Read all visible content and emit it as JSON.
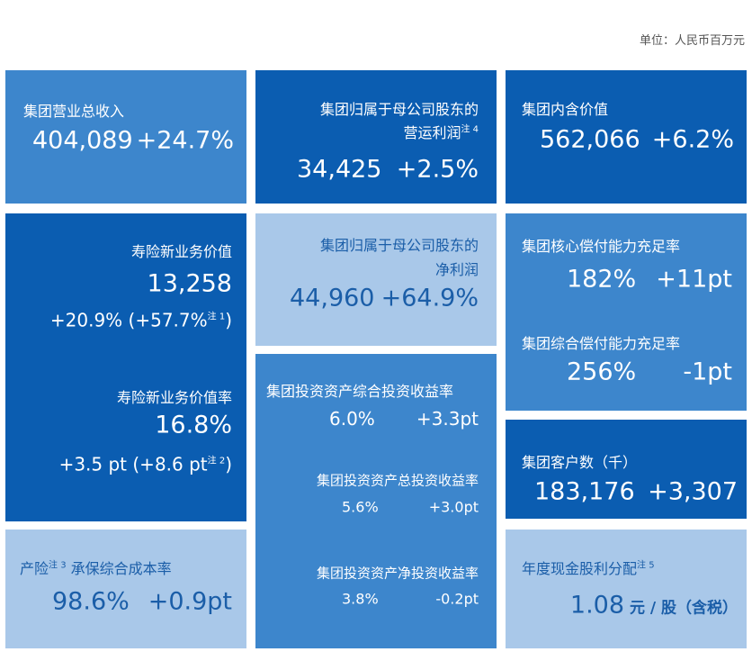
{
  "unit": "单位：人民币百万元",
  "revenue": {
    "label": "集团营业总收入",
    "value": "404,089",
    "change": "+24.7%"
  },
  "operating_profit": {
    "label": [
      "集团归属于母公司股东的",
      "营运利润"
    ],
    "note": "注 4",
    "value": "34,425",
    "change": "+2.5%"
  },
  "embedded_value": {
    "label": "集团内含价值",
    "value": "562,066",
    "change": "+6.2%"
  },
  "life_nbv": {
    "label": "寿险新业务价值",
    "value": "13,258",
    "change": "+20.9% (+57.7%",
    "note": "注 1",
    "close": ")"
  },
  "life_nbv_margin": {
    "label": "寿险新业务价值率",
    "value": "16.8%",
    "change": "+3.5 pt  (+8.6 pt",
    "note": "注 2",
    "close": ")"
  },
  "net_profit": {
    "label": [
      "集团归属于母公司股东的",
      "净利润"
    ],
    "value": "44,960",
    "change": "+64.9%"
  },
  "core_solvency": {
    "label": "集团核心偿付能力充足率",
    "value": "182%",
    "change": "+11pt"
  },
  "comprehensive_solvency": {
    "label": "集团综合偿付能力充足率",
    "value": "256%",
    "change": "-1pt"
  },
  "comprehensive_yield": {
    "label": "集团投资资产综合投资收益率",
    "value": "6.0%",
    "change": "+3.3pt"
  },
  "total_yield": {
    "label": "集团投资资产总投资收益率",
    "value": "5.6%",
    "change": "+3.0pt"
  },
  "net_yield": {
    "label": "集团投资资产净投资收益率",
    "value": "3.8%",
    "change": "-0.2pt"
  },
  "customers": {
    "label": "集团客户数（千）",
    "value": "183,176",
    "change": "+3,307"
  },
  "combined_ratio": {
    "label_prefix": "产险",
    "note": "注 3",
    "label": " 承保综合成本率",
    "value": "98.6%",
    "change": "+0.9pt"
  },
  "dividend": {
    "label": "年度现金股利分配",
    "note": "注 5",
    "value": "1.08",
    "unit": " 元 / 股（含税）"
  }
}
